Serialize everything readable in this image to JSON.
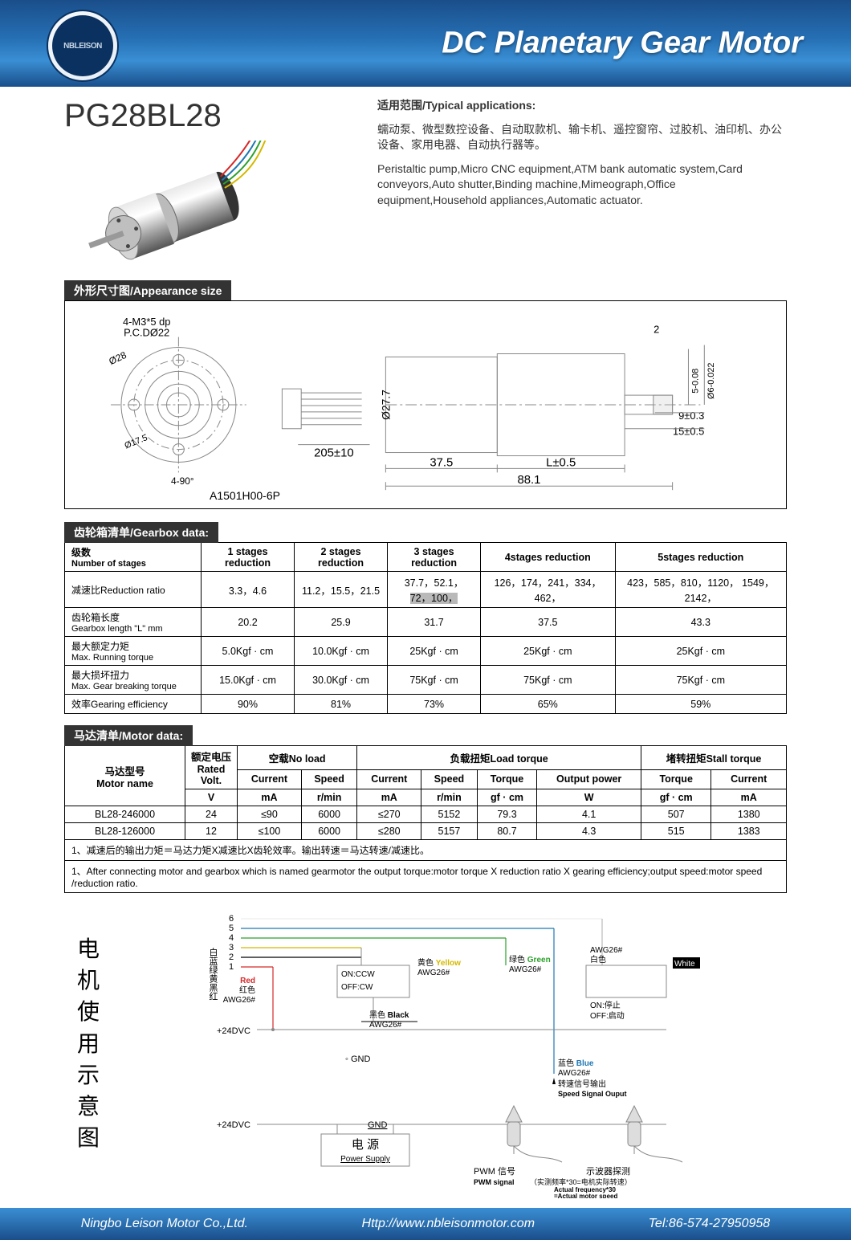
{
  "banner": {
    "title": "DC Planetary Gear Motor",
    "logo_text": "NBLEISON"
  },
  "product": {
    "model": "PG28BL28"
  },
  "applications": {
    "title": "适用范围/Typical applications:",
    "cn": "蠕动泵、微型数控设备、自动取款机、输卡机、遥控窗帘、过胶机、油印机、办公设备、家用电器、自动执行器等。",
    "en": "Peristaltic pump,Micro CNC equipment,ATM bank automatic system,Card conveyors,Auto shutter,Binding machine,Mimeograph,Office equipment,Household appliances,Automatic actuator."
  },
  "sections": {
    "appearance": "外形尺寸图/Appearance size",
    "gearbox": "齿轮箱清单/Gearbox data:",
    "motor": "马达清单/Motor data:"
  },
  "appearance": {
    "connector": "A1501H00-6P",
    "mount_holes": "4-M3*5 dp",
    "pcd": "P.C.DØ22",
    "outer_dia": "Ø28",
    "flat_dia": "Ø17.5",
    "angles": "4-90°",
    "body_dia": "Ø27.7",
    "wire_len": "205±10",
    "motor_len": "37.5",
    "gear_len": "L±0.5",
    "total_len": "88.1",
    "shaft_step": "2",
    "shaft_d1": "5-0.08",
    "shaft_d2": "Ø6-0.022",
    "shaft_flat_len": "9±0.3",
    "shaft_len": "15±0.5"
  },
  "gearbox": {
    "col_label": {
      "cn": "级数",
      "en": "Number of stages"
    },
    "cols": [
      "1 stages reduction",
      "2 stages reduction",
      "3 stages reduction",
      "4stages reduction",
      "5stages reduction"
    ],
    "rows": {
      "ratio": {
        "cn": "减速比Reduction ratio",
        "en": "",
        "v": [
          "3.3，4.6",
          "11.2，15.5，21.5",
          "37.7，52.1，72，100，",
          "126，174，241，334，   462，",
          "423，585，810，1120，  1549，2142，"
        ]
      },
      "length": {
        "cn": "齿轮箱长度",
        "en": "Gearbox length \"L\" mm",
        "v": [
          "20.2",
          "25.9",
          "31.7",
          "37.5",
          "43.3"
        ]
      },
      "run_tq": {
        "cn": "最大额定力矩",
        "en": "Max. Running  torque",
        "v": [
          "5.0Kgf · cm",
          "10.0Kgf · cm",
          "25Kgf · cm",
          "25Kgf · cm",
          "25Kgf · cm"
        ]
      },
      "brk_tq": {
        "cn": "最大损坏扭力",
        "en": "Max. Gear  breaking torque",
        "v": [
          "15.0Kgf · cm",
          "30.0Kgf · cm",
          "75Kgf · cm",
          "75Kgf · cm",
          "75Kgf · cm"
        ]
      },
      "eff": {
        "cn": "效率Gearing efficiency",
        "en": "",
        "v": [
          "90%",
          "81%",
          "73%",
          "65%",
          "59%"
        ]
      }
    }
  },
  "motor": {
    "headers": {
      "name": {
        "cn": "马达型号",
        "en": "Motor name"
      },
      "volt": {
        "cn": "额定电压",
        "en": "Rated Volt.",
        "unit": "V"
      },
      "noload": "空载No load",
      "load": "负载扭矩Load  torque",
      "stall": "堵转扭矩Stall  torque",
      "current": "Current",
      "speed": "Speed",
      "torque": "Torque",
      "power": "Output power",
      "u_ma": "mA",
      "u_rpm": "r/min",
      "u_gfcm": "gf · cm",
      "u_w": "W"
    },
    "rows": [
      {
        "name": "BL28-246000",
        "v": "24",
        "nl_i": "≤90",
        "nl_s": "6000",
        "l_i": "≤270",
        "l_s": "5152",
        "l_t": "79.3",
        "l_p": "4.1",
        "s_t": "507",
        "s_i": "1380"
      },
      {
        "name": "BL28-126000",
        "v": "12",
        "nl_i": "≤100",
        "nl_s": "6000",
        "l_i": "≤280",
        "l_s": "5157",
        "l_t": "80.7",
        "l_p": "4.3",
        "s_t": "515",
        "s_i": "1383"
      }
    ]
  },
  "notes": {
    "cn": "1、减速后的输出力矩＝马达力矩X减速比X齿轮效率。输出转速＝马达转速/减速比。",
    "en": "1、After connecting motor and gearbox which is named gearmotor the  output torque:motor torque X reduction ratio X gearing efficiency;output speed:motor speed /reduction ratio."
  },
  "wiring": {
    "title": "电机使用示意图",
    "pins_label": "白蓝绿黄黑红",
    "pins_num": [
      "6",
      "5",
      "4",
      "3",
      "2",
      "1"
    ],
    "red": "Red",
    "red_cn": "红色",
    "awg": "AWG26#",
    "vcc": "+24DVC",
    "gnd": "GND",
    "gnd_sym": "◦ GND",
    "ps_cn": "电  源",
    "ps_en": "Power Supply",
    "dir_on": "ON:CCW",
    "dir_off": "OFF:CW",
    "yellow": "Yellow",
    "yellow_cn": "黄色",
    "black": "Black",
    "black_cn": "黑色",
    "green": "Green",
    "green_cn": "绿色",
    "white": "White",
    "white_cn": "白色",
    "blue": "Blue",
    "blue_cn": "蓝色",
    "onoff_on": "ON:停止",
    "onoff_off": "OFF:启动",
    "speed_cn": "转速信号输出",
    "speed_en": "Speed Signal Ouput",
    "pwm_cn": "PWM 信号",
    "pwm_en": "PWM signal",
    "osc_cn": "示波器探测",
    "freq_cn": "（实测频率*30=电机实际转速）",
    "freq_en1": "Actual frequency*30",
    "freq_en2": "=Actual motor speed"
  },
  "footer": {
    "company": "Ningbo Leison Motor Co.,Ltd.",
    "url": "Http://www.nbleisonmotor.com",
    "tel": "Tel:86-574-27950958"
  },
  "colors": {
    "red": "#d62728",
    "yellow": "#d4b800",
    "green": "#2ca02c",
    "blue": "#1f77b4",
    "black": "#000000",
    "white_label_bg": "#000"
  }
}
